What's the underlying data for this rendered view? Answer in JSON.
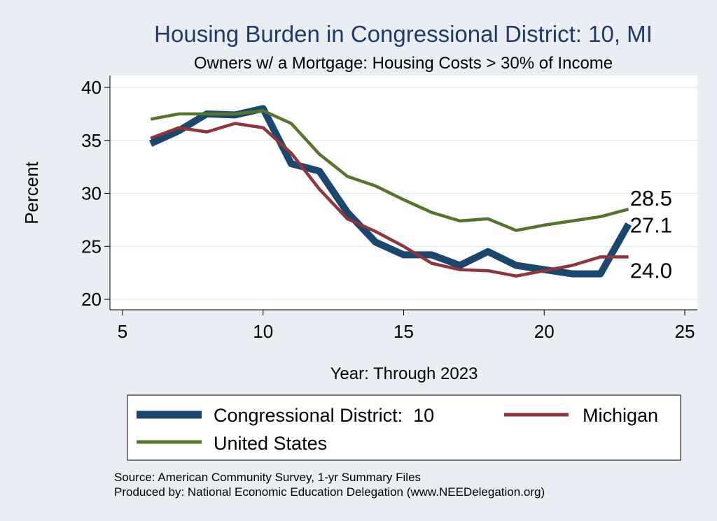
{
  "chart_data": {
    "type": "line",
    "title": "Housing Burden in Congressional District:  10, MI",
    "subtitle": "Owners w/ a Mortgage: Housing Costs > 30% of Income",
    "xlabel": "Year: Through 2023",
    "ylabel": "Percent",
    "xlim": [
      5,
      25
    ],
    "ylim": [
      19.5,
      41
    ],
    "xticks": [
      5,
      10,
      15,
      20,
      25
    ],
    "yticks": [
      20,
      25,
      30,
      35,
      40
    ],
    "grid": true,
    "legend_position": "bottom",
    "series": [
      {
        "name": "Congressional District:  10",
        "color": "#1a476f",
        "x": [
          6,
          7,
          8,
          9,
          10,
          11,
          12,
          13,
          14,
          15,
          16,
          17,
          18,
          19,
          20,
          21,
          22,
          23
        ],
        "values": [
          34.7,
          35.9,
          37.5,
          37.4,
          38.0,
          32.8,
          32.1,
          28.2,
          25.4,
          24.2,
          24.2,
          23.2,
          24.5,
          23.2,
          22.8,
          22.4,
          22.4,
          27.1
        ],
        "end_label": "27.1"
      },
      {
        "name": "Michigan",
        "color": "#90353b",
        "x": [
          6,
          7,
          8,
          9,
          10,
          11,
          12,
          13,
          14,
          15,
          16,
          17,
          18,
          19,
          20,
          21,
          22,
          23
        ],
        "values": [
          35.2,
          36.2,
          35.8,
          36.6,
          36.2,
          33.8,
          30.4,
          27.6,
          26.4,
          25.0,
          23.4,
          22.8,
          22.7,
          22.2,
          22.7,
          23.2,
          24.0,
          24.0
        ],
        "end_label": "24.0"
      },
      {
        "name": "United States",
        "color": "#55752f",
        "x": [
          6,
          7,
          8,
          9,
          10,
          11,
          12,
          13,
          14,
          15,
          16,
          17,
          18,
          19,
          20,
          21,
          22,
          23
        ],
        "values": [
          37.0,
          37.5,
          37.5,
          37.5,
          37.8,
          36.6,
          33.7,
          31.6,
          30.7,
          29.4,
          28.2,
          27.4,
          27.6,
          26.5,
          27.0,
          27.4,
          27.8,
          28.5
        ],
        "end_label": "28.5"
      }
    ]
  },
  "source_note": "Source: American Community Survey, 1-yr Summary Files",
  "producer_note": "Produced by: National Economic Education Delegation (www.NEEDelegation.org)"
}
